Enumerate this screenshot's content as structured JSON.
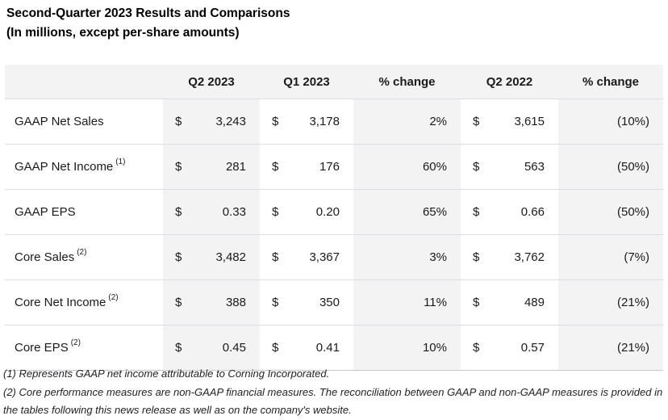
{
  "title": {
    "line1": "Second-Quarter 2023 Results and Comparisons",
    "line2": "(In millions, except per-share amounts)"
  },
  "table": {
    "currency": "$",
    "columns": [
      "",
      "Q2 2023",
      "Q1 2023",
      "% change",
      "Q2 2022",
      "% change"
    ],
    "rows": [
      {
        "label": "GAAP Net Sales",
        "footnote_ref": "",
        "q2_2023": "3,243",
        "q1_2023": "3,178",
        "pct_change_qoq": "2%",
        "q2_2022": "3,615",
        "pct_change_yoy": "(10%)"
      },
      {
        "label": "GAAP Net Income",
        "footnote_ref": "(1)",
        "q2_2023": "281",
        "q1_2023": "176",
        "pct_change_qoq": "60%",
        "q2_2022": "563",
        "pct_change_yoy": "(50%)"
      },
      {
        "label": "GAAP EPS",
        "footnote_ref": "",
        "q2_2023": "0.33",
        "q1_2023": "0.20",
        "pct_change_qoq": "65%",
        "q2_2022": "0.66",
        "pct_change_yoy": "(50%)"
      },
      {
        "label": "Core Sales",
        "footnote_ref": "(2)",
        "q2_2023": "3,482",
        "q1_2023": "3,367",
        "pct_change_qoq": "3%",
        "q2_2022": "3,762",
        "pct_change_yoy": "(7%)"
      },
      {
        "label": "Core Net Income",
        "footnote_ref": "(2)",
        "q2_2023": "388",
        "q1_2023": "350",
        "pct_change_qoq": "11%",
        "q2_2022": "489",
        "pct_change_yoy": "(21%)"
      },
      {
        "label": "Core EPS",
        "footnote_ref": "(2)",
        "q2_2023": "0.45",
        "q1_2023": "0.41",
        "pct_change_qoq": "10%",
        "q2_2022": "0.57",
        "pct_change_yoy": "(21%)"
      }
    ]
  },
  "footnotes": [
    "(1) Represents GAAP net income attributable to Corning Incorporated.",
    "(2) Core performance measures are non-GAAP financial measures. The reconciliation between GAAP and non-GAAP measures is provided in the tables following this news release as well as on the company's website."
  ],
  "colors": {
    "shaded_column_bg": "#f4f3f3",
    "row_separator": "#dcdce6",
    "text": "#1a1a1a"
  }
}
